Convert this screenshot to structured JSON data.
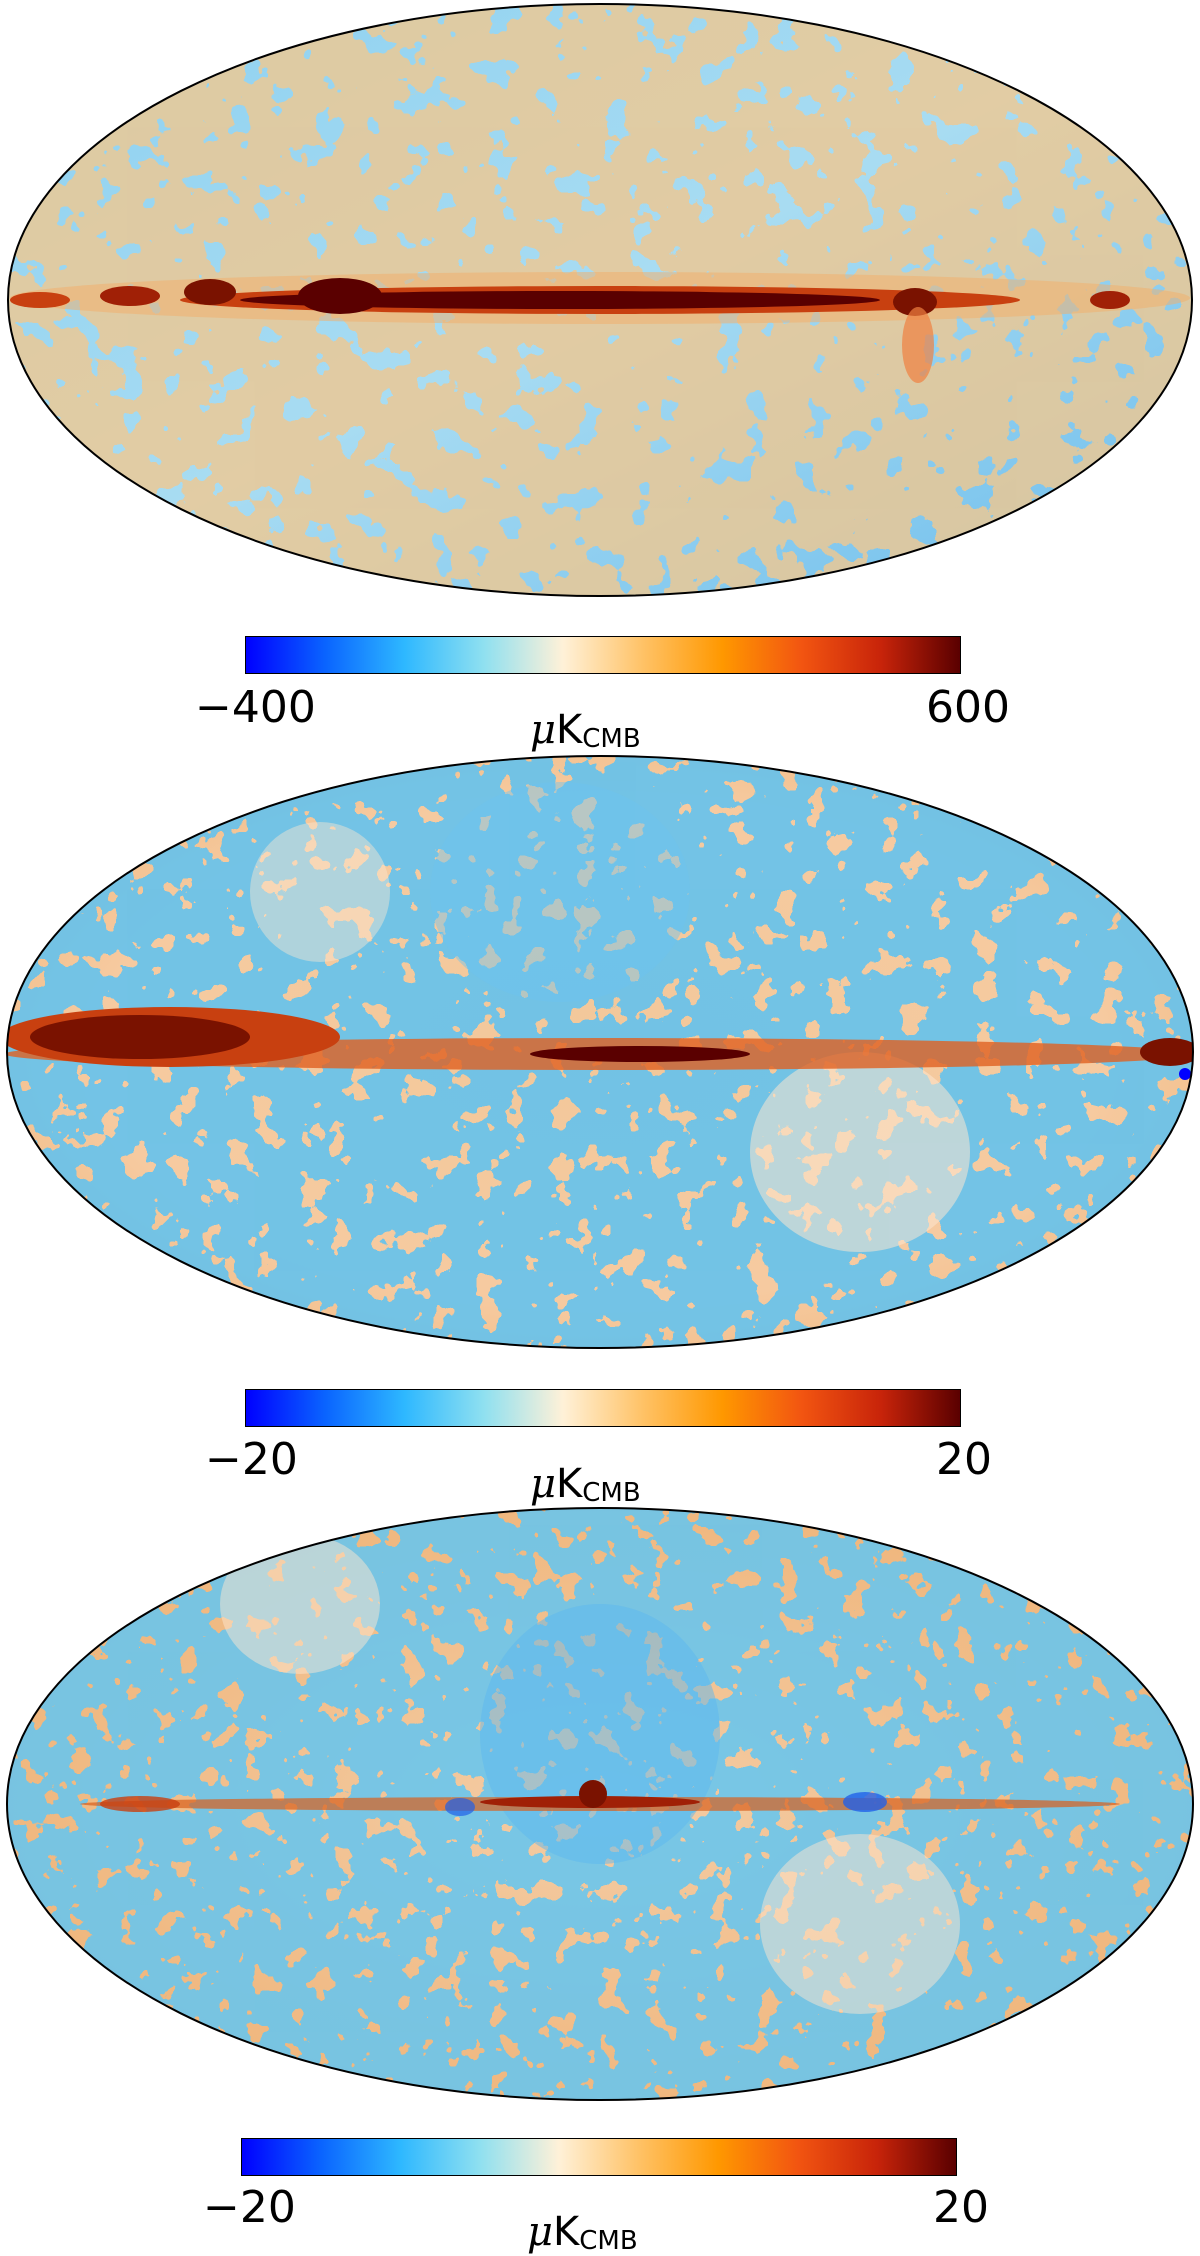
{
  "colors": {
    "colormap": [
      "#0000ff",
      "#0a64ff",
      "#2eb8ff",
      "#8fe0f0",
      "#fff1d8",
      "#ffc266",
      "#ff9800",
      "#f25511",
      "#c8240a",
      "#5a0000"
    ]
  },
  "maps": [
    {
      "id": "map-1",
      "colorbar": {
        "min_label": "−400",
        "max_label": "600"
      },
      "unit": {
        "prefix": "μ",
        "main": "K",
        "sub": "CMB"
      }
    },
    {
      "id": "map-2",
      "colorbar": {
        "min_label": "−20",
        "max_label": "20"
      },
      "unit": {
        "prefix": "μ",
        "main": "K",
        "sub": "CMB"
      }
    },
    {
      "id": "map-3",
      "colorbar": {
        "min_label": "−20",
        "max_label": "20"
      },
      "unit": {
        "prefix": "μ",
        "main": "K",
        "sub": "CMB"
      }
    }
  ]
}
